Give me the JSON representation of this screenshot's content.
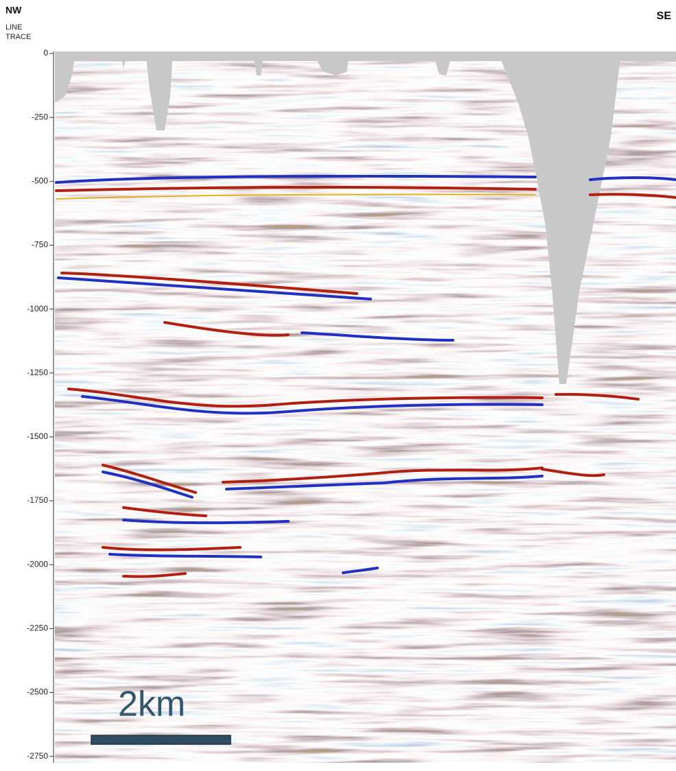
{
  "chart_data": {
    "type": "seismic-section",
    "left_label": "NW",
    "right_label": "SE",
    "header_lines": [
      "LINE",
      "TRACE"
    ],
    "scale_bar_label": "2km",
    "ylim": [
      -2775,
      0
    ],
    "yticks": [
      0,
      -250,
      -500,
      -750,
      -1000,
      -1250,
      -1500,
      -1750,
      -2000,
      -2250,
      -2500,
      -2750
    ]
  }
}
